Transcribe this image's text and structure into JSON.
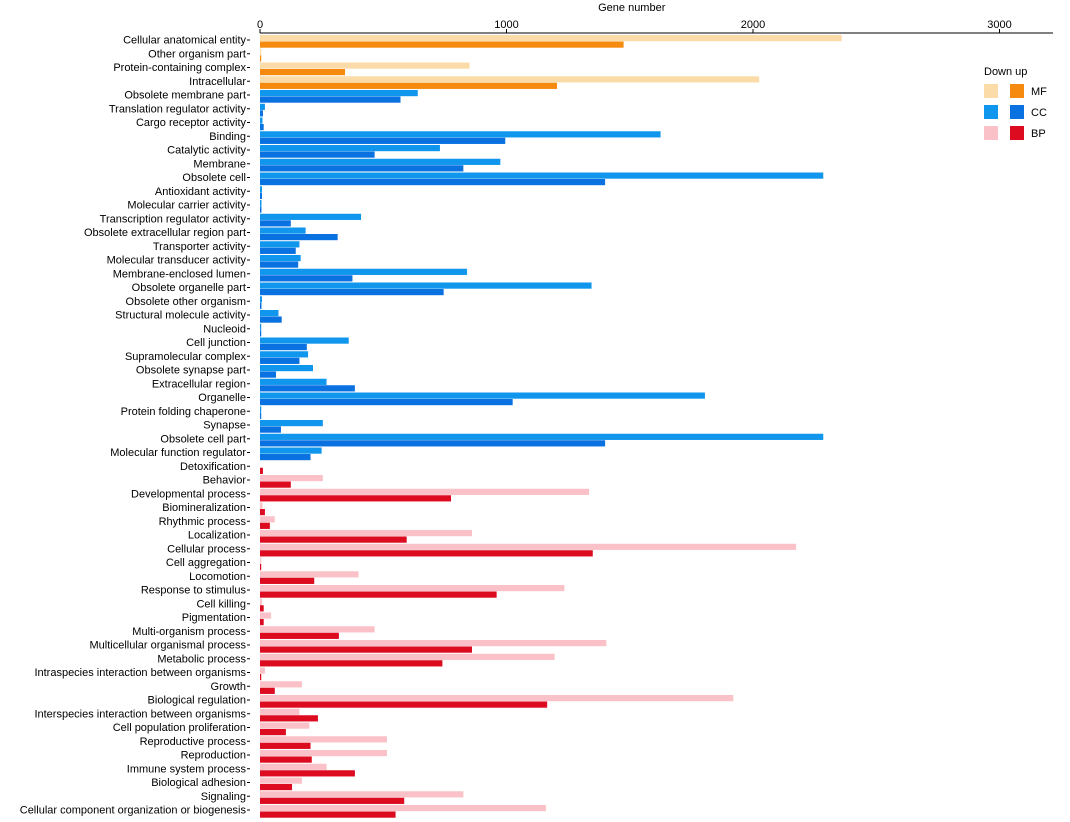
{
  "chart_data": {
    "type": "bar",
    "orientation": "horizontal",
    "xlabel": "Gene number",
    "xlim": [
      0,
      3200
    ],
    "xticks": [
      0,
      1000,
      2000,
      3000
    ],
    "legend": {
      "title": "Down up",
      "placement": "right",
      "groups": [
        {
          "name": "MF",
          "light": "#FBDCA9",
          "dark": "#F68A0E"
        },
        {
          "name": "CC",
          "light": "#1196EE",
          "dark": "#0A71E0"
        },
        {
          "name": "BP",
          "light": "#FAC2C8",
          "dark": "#DC0B20"
        }
      ]
    },
    "series": [
      {
        "name": "Down",
        "shade": "light"
      },
      {
        "name": "up",
        "shade": "dark"
      }
    ],
    "categories": [
      {
        "label": "Cellular anatomical entity",
        "group": "MF",
        "down": 2360,
        "up": 1475
      },
      {
        "label": "Other organism part",
        "group": "MF",
        "down": 5,
        "up": 5
      },
      {
        "label": "Protein-containing complex",
        "group": "MF",
        "down": 850,
        "up": 345
      },
      {
        "label": "Intracellular",
        "group": "MF",
        "down": 2025,
        "up": 1205
      },
      {
        "label": "Obsolete membrane part",
        "group": "CC",
        "down": 640,
        "up": 570
      },
      {
        "label": "Translation regulator activity",
        "group": "CC",
        "down": 20,
        "up": 12
      },
      {
        "label": "Cargo receptor activity",
        "group": "CC",
        "down": 10,
        "up": 15
      },
      {
        "label": "Binding",
        "group": "CC",
        "down": 1625,
        "up": 995
      },
      {
        "label": "Catalytic activity",
        "group": "CC",
        "down": 730,
        "up": 465
      },
      {
        "label": "Membrane",
        "group": "CC",
        "down": 975,
        "up": 825
      },
      {
        "label": "Obsolete cell",
        "group": "CC",
        "down": 2285,
        "up": 1400
      },
      {
        "label": "Antioxidant activity",
        "group": "CC",
        "down": 8,
        "up": 8
      },
      {
        "label": "Molecular carrier activity",
        "group": "CC",
        "down": 6,
        "up": 6
      },
      {
        "label": "Transcription regulator activity",
        "group": "CC",
        "down": 410,
        "up": 125
      },
      {
        "label": "Obsolete extracellular region part",
        "group": "CC",
        "down": 185,
        "up": 315
      },
      {
        "label": "Transporter activity",
        "group": "CC",
        "down": 160,
        "up": 145
      },
      {
        "label": "Molecular transducer activity",
        "group": "CC",
        "down": 165,
        "up": 155
      },
      {
        "label": "Membrane-enclosed lumen",
        "group": "CC",
        "down": 840,
        "up": 375
      },
      {
        "label": "Obsolete organelle part",
        "group": "CC",
        "down": 1345,
        "up": 745
      },
      {
        "label": "Obsolete other organism",
        "group": "CC",
        "down": 8,
        "up": 6
      },
      {
        "label": "Structural molecule activity",
        "group": "CC",
        "down": 75,
        "up": 88
      },
      {
        "label": "Nucleoid",
        "group": "CC",
        "down": 5,
        "up": 5
      },
      {
        "label": "Cell junction",
        "group": "CC",
        "down": 360,
        "up": 190
      },
      {
        "label": "Supramolecular complex",
        "group": "CC",
        "down": 195,
        "up": 160
      },
      {
        "label": "Obsolete synapse part",
        "group": "CC",
        "down": 215,
        "up": 65
      },
      {
        "label": "Extracellular region",
        "group": "CC",
        "down": 270,
        "up": 385
      },
      {
        "label": "Organelle",
        "group": "CC",
        "down": 1805,
        "up": 1025
      },
      {
        "label": "Protein folding chaperone",
        "group": "CC",
        "down": 5,
        "up": 5
      },
      {
        "label": "Synapse",
        "group": "CC",
        "down": 255,
        "up": 85
      },
      {
        "label": "Obsolete cell part",
        "group": "CC",
        "down": 2285,
        "up": 1400
      },
      {
        "label": "Molecular function regulator",
        "group": "CC",
        "down": 250,
        "up": 205
      },
      {
        "label": "Detoxification",
        "group": "BP",
        "down": 0,
        "up": 12
      },
      {
        "label": "Behavior",
        "group": "BP",
        "down": 255,
        "up": 125
      },
      {
        "label": "Developmental process",
        "group": "BP",
        "down": 1335,
        "up": 775
      },
      {
        "label": "Biomineralization",
        "group": "BP",
        "down": 10,
        "up": 20
      },
      {
        "label": "Rhythmic process",
        "group": "BP",
        "down": 60,
        "up": 40
      },
      {
        "label": "Localization",
        "group": "BP",
        "down": 860,
        "up": 595
      },
      {
        "label": "Cellular process",
        "group": "BP",
        "down": 2175,
        "up": 1350
      },
      {
        "label": "Cell aggregation",
        "group": "BP",
        "down": 5,
        "up": 5
      },
      {
        "label": "Locomotion",
        "group": "BP",
        "down": 400,
        "up": 220
      },
      {
        "label": "Response to stimulus",
        "group": "BP",
        "down": 1235,
        "up": 960
      },
      {
        "label": "Cell killing",
        "group": "BP",
        "down": 8,
        "up": 15
      },
      {
        "label": "Pigmentation",
        "group": "BP",
        "down": 45,
        "up": 15
      },
      {
        "label": "Multi-organism process",
        "group": "BP",
        "down": 465,
        "up": 320
      },
      {
        "label": "Multicellular organismal process",
        "group": "BP",
        "down": 1405,
        "up": 860
      },
      {
        "label": "Metabolic process",
        "group": "BP",
        "down": 1195,
        "up": 740
      },
      {
        "label": "Intraspecies interaction between organisms",
        "group": "BP",
        "down": 20,
        "up": 5
      },
      {
        "label": "Growth",
        "group": "BP",
        "down": 170,
        "up": 60
      },
      {
        "label": "Biological regulation",
        "group": "BP",
        "down": 1920,
        "up": 1165
      },
      {
        "label": "Interspecies interaction between organisms",
        "group": "BP",
        "down": 160,
        "up": 235
      },
      {
        "label": "Cell population proliferation",
        "group": "BP",
        "down": 200,
        "up": 105
      },
      {
        "label": "Reproductive process",
        "group": "BP",
        "down": 515,
        "up": 205
      },
      {
        "label": "Reproduction",
        "group": "BP",
        "down": 515,
        "up": 210
      },
      {
        "label": "Immune system process",
        "group": "BP",
        "down": 270,
        "up": 385
      },
      {
        "label": "Biological adhesion",
        "group": "BP",
        "down": 170,
        "up": 130
      },
      {
        "label": "Signaling",
        "group": "BP",
        "down": 825,
        "up": 585
      },
      {
        "label": "Cellular component organization or biogenesis",
        "group": "BP",
        "down": 1160,
        "up": 550
      }
    ]
  }
}
